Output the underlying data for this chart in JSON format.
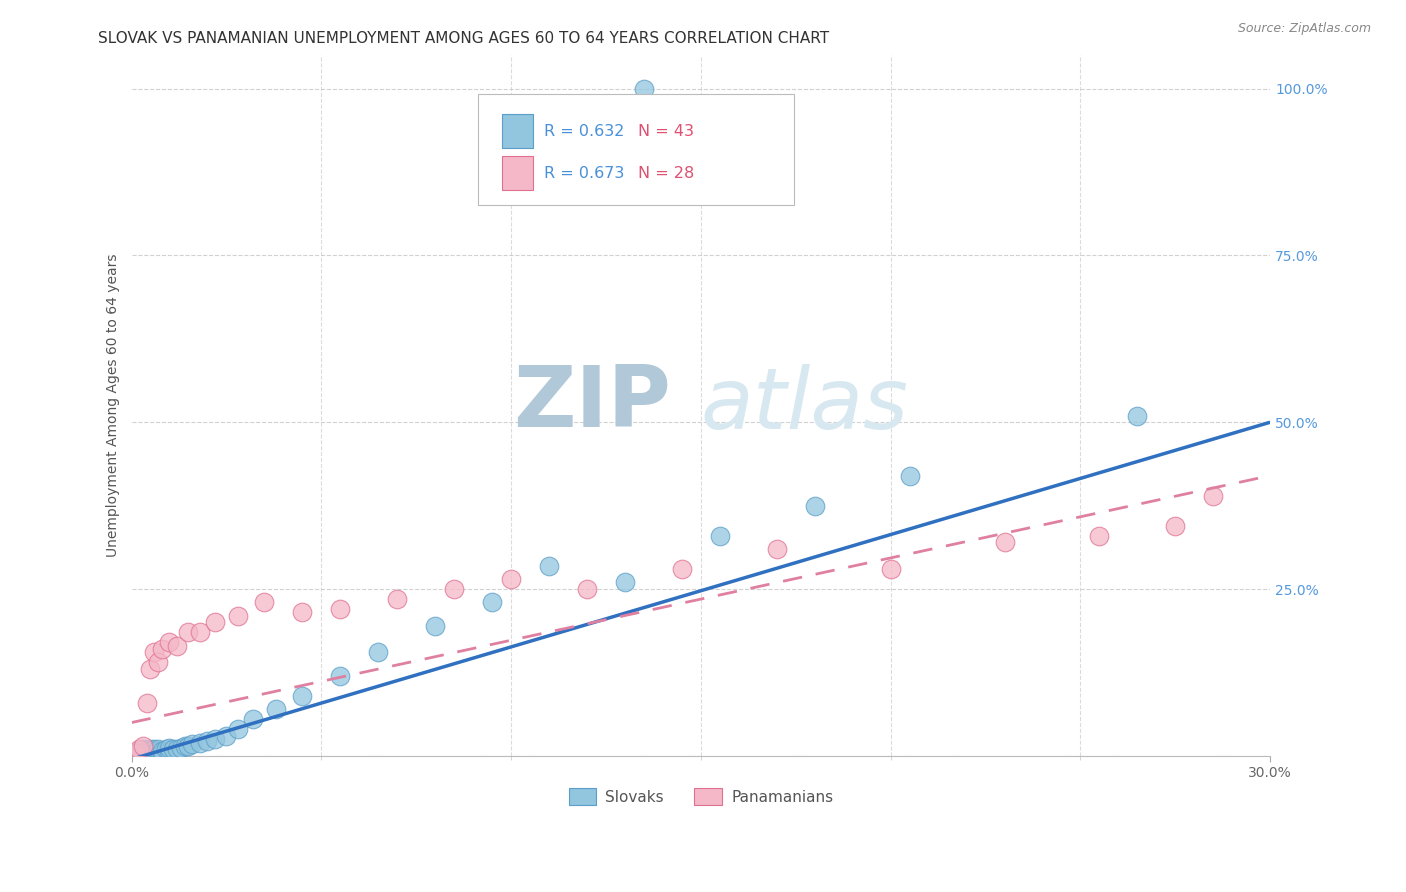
{
  "title": "SLOVAK VS PANAMANIAN UNEMPLOYMENT AMONG AGES 60 TO 64 YEARS CORRELATION CHART",
  "source": "Source: ZipAtlas.com",
  "ylabel": "Unemployment Among Ages 60 to 64 years",
  "xlim": [
    0.0,
    0.3
  ],
  "ylim": [
    0.0,
    1.05
  ],
  "yticks": [
    0.0,
    0.25,
    0.5,
    0.75,
    1.0
  ],
  "ytick_labels": [
    "",
    "25.0%",
    "50.0%",
    "75.0%",
    "100.0%"
  ],
  "xtick_labels": [
    "0.0%",
    "30.0%"
  ],
  "grid_color": "#cccccc",
  "background_color": "#ffffff",
  "slovak_color": "#92c5de",
  "slovak_edge_color": "#5b9ec9",
  "panamanian_color": "#f4b8c8",
  "panamanian_edge_color": "#e07090",
  "slovak_R": "0.632",
  "slovak_N": "43",
  "panamanian_R": "0.673",
  "panamanian_N": "28",
  "R_text_color": "#4a90d9",
  "N_text_color": "#e05070",
  "right_axis_color": "#5599dd",
  "title_fontsize": 11,
  "axis_label_fontsize": 10,
  "tick_fontsize": 10,
  "source_fontsize": 9,
  "slovak_line_color": "#3070c0",
  "panamanian_line_color": "#e080a0",
  "watermark_color": "#d8e8f0",
  "watermark_zip_color": "#b0c8d8",
  "slovak_x": [
    0.001,
    0.002,
    0.002,
    0.003,
    0.003,
    0.004,
    0.004,
    0.005,
    0.005,
    0.006,
    0.006,
    0.007,
    0.007,
    0.008,
    0.008,
    0.009,
    0.01,
    0.01,
    0.011,
    0.012,
    0.013,
    0.014,
    0.015,
    0.016,
    0.018,
    0.02,
    0.022,
    0.025,
    0.028,
    0.032,
    0.038,
    0.045,
    0.055,
    0.065,
    0.08,
    0.095,
    0.11,
    0.13,
    0.155,
    0.18,
    0.205,
    0.265,
    0.135
  ],
  "slovak_y": [
    0.005,
    0.005,
    0.008,
    0.005,
    0.01,
    0.005,
    0.008,
    0.005,
    0.01,
    0.005,
    0.01,
    0.008,
    0.01,
    0.005,
    0.008,
    0.01,
    0.008,
    0.012,
    0.01,
    0.01,
    0.012,
    0.015,
    0.015,
    0.018,
    0.02,
    0.022,
    0.025,
    0.03,
    0.04,
    0.055,
    0.07,
    0.09,
    0.12,
    0.155,
    0.195,
    0.23,
    0.285,
    0.26,
    0.33,
    0.375,
    0.42,
    0.51,
    1.0
  ],
  "panamanian_x": [
    0.001,
    0.002,
    0.003,
    0.004,
    0.005,
    0.006,
    0.007,
    0.008,
    0.01,
    0.012,
    0.015,
    0.018,
    0.022,
    0.028,
    0.035,
    0.045,
    0.055,
    0.07,
    0.085,
    0.1,
    0.12,
    0.145,
    0.17,
    0.2,
    0.23,
    0.255,
    0.275,
    0.285
  ],
  "panamanian_y": [
    0.005,
    0.01,
    0.015,
    0.08,
    0.13,
    0.155,
    0.14,
    0.16,
    0.17,
    0.165,
    0.185,
    0.185,
    0.2,
    0.21,
    0.23,
    0.215,
    0.22,
    0.235,
    0.25,
    0.265,
    0.25,
    0.28,
    0.31,
    0.28,
    0.32,
    0.33,
    0.345,
    0.39
  ],
  "slovak_line_x": [
    0.0,
    0.3
  ],
  "slovak_line_y": [
    -0.005,
    0.5
  ],
  "panamanian_line_x": [
    0.0,
    0.3
  ],
  "panamanian_line_y": [
    0.05,
    0.42
  ]
}
